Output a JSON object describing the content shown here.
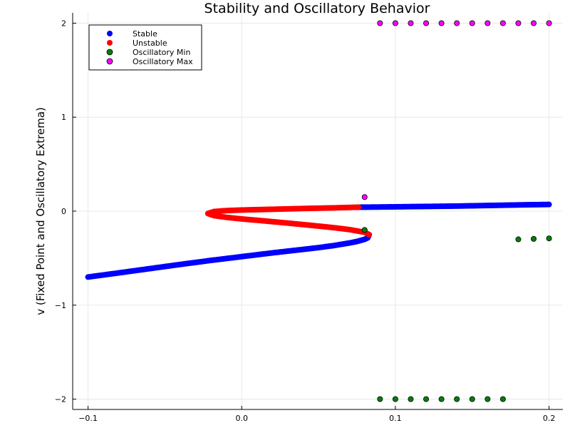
{
  "chart_data": {
    "type": "scatter",
    "title": "Stability and Oscillatory Behavior",
    "xlabel": "",
    "ylabel": "v (Fixed Point and Oscillatory Extrema)",
    "xlim": [
      -0.11,
      0.209
    ],
    "ylim": [
      -2.11,
      2.11
    ],
    "xticks": [
      -0.1,
      0.0,
      0.1,
      0.2
    ],
    "xtick_labels": [
      "−0.1",
      "0.0",
      "0.1",
      "0.2"
    ],
    "yticks": [
      -2,
      -1,
      0,
      1,
      2
    ],
    "ytick_labels": [
      "−2",
      "−1",
      "0",
      "1",
      "2"
    ],
    "grid": true,
    "legend_position": "top-left",
    "series": [
      {
        "name": "Stable",
        "color": "#0000ff",
        "points": [
          [
            -0.1,
            -0.701
          ],
          [
            -0.08,
            -0.657
          ],
          [
            -0.06,
            -0.612
          ],
          [
            -0.04,
            -0.567
          ],
          [
            -0.02,
            -0.524
          ],
          [
            0.0,
            -0.484
          ],
          [
            0.02,
            -0.444
          ],
          [
            0.04,
            -0.407
          ],
          [
            0.05,
            -0.388
          ],
          [
            0.06,
            -0.366
          ],
          [
            0.07,
            -0.339
          ],
          [
            0.075,
            -0.323
          ],
          [
            0.08,
            -0.3
          ],
          [
            0.082,
            -0.284
          ],
          [
            0.083,
            -0.25
          ],
          [
            0.076,
            0.042
          ],
          [
            0.09,
            0.044
          ],
          [
            0.1,
            0.046
          ],
          [
            0.11,
            0.048
          ],
          [
            0.12,
            0.05
          ],
          [
            0.13,
            0.052
          ],
          [
            0.14,
            0.054
          ],
          [
            0.15,
            0.057
          ],
          [
            0.16,
            0.06
          ],
          [
            0.17,
            0.063
          ],
          [
            0.18,
            0.066
          ],
          [
            0.19,
            0.069
          ],
          [
            0.2,
            0.071
          ]
        ]
      },
      {
        "name": "Unstable",
        "color": "#ff0000",
        "points": [
          [
            0.083,
            -0.25
          ],
          [
            0.08,
            -0.225
          ],
          [
            0.07,
            -0.196
          ],
          [
            0.06,
            -0.176
          ],
          [
            0.05,
            -0.159
          ],
          [
            0.04,
            -0.143
          ],
          [
            0.03,
            -0.127
          ],
          [
            0.02,
            -0.112
          ],
          [
            0.01,
            -0.097
          ],
          [
            0.0,
            -0.083
          ],
          [
            -0.01,
            -0.066
          ],
          [
            -0.018,
            -0.048
          ],
          [
            -0.022,
            -0.025
          ],
          [
            -0.018,
            -0.004
          ],
          [
            -0.01,
            0.006
          ],
          [
            0.0,
            0.012
          ],
          [
            0.02,
            0.02
          ],
          [
            0.04,
            0.028
          ],
          [
            0.06,
            0.035
          ],
          [
            0.076,
            0.042
          ]
        ]
      },
      {
        "name": "Oscillatory Min",
        "color": "#008000",
        "points": [
          [
            0.08,
            -0.2
          ],
          [
            0.09,
            -2.0
          ],
          [
            0.1,
            -2.0
          ],
          [
            0.11,
            -2.0
          ],
          [
            0.12,
            -2.0
          ],
          [
            0.13,
            -2.0
          ],
          [
            0.14,
            -2.0
          ],
          [
            0.15,
            -2.0
          ],
          [
            0.16,
            -2.0
          ],
          [
            0.17,
            -2.0
          ],
          [
            0.18,
            -0.3
          ],
          [
            0.19,
            -0.295
          ],
          [
            0.2,
            -0.29
          ]
        ]
      },
      {
        "name": "Oscillatory Max",
        "color": "#ff00ff",
        "points": [
          [
            0.08,
            0.15
          ],
          [
            0.09,
            2.0
          ],
          [
            0.1,
            2.0
          ],
          [
            0.11,
            2.0
          ],
          [
            0.12,
            2.0
          ],
          [
            0.13,
            2.0
          ],
          [
            0.14,
            2.0
          ],
          [
            0.15,
            2.0
          ],
          [
            0.16,
            2.0
          ],
          [
            0.17,
            2.0
          ],
          [
            0.18,
            2.0
          ],
          [
            0.19,
            2.0
          ],
          [
            0.2,
            2.0
          ]
        ]
      }
    ]
  }
}
